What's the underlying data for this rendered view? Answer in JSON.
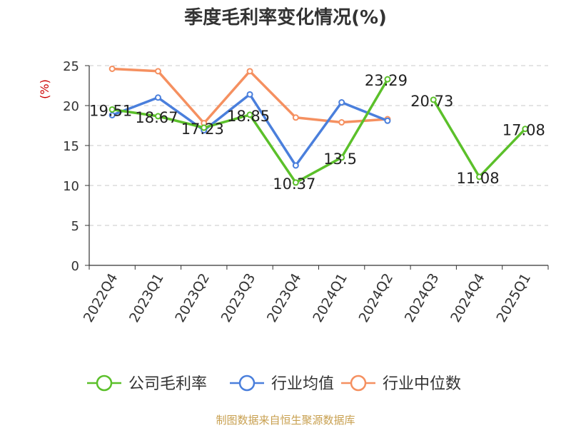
{
  "chart_data": {
    "type": "line",
    "title": "季度毛利率变化情况(%)",
    "ylabel": "(%)",
    "xlabel": "",
    "ylim": [
      0,
      25
    ],
    "yticks": [
      0,
      5,
      10,
      15,
      20,
      25
    ],
    "grid": true,
    "legend_position": "bottom",
    "categories": [
      "2022Q4",
      "2023Q1",
      "2023Q2",
      "2023Q3",
      "2023Q4",
      "2024Q1",
      "2024Q2",
      "2024Q3",
      "2024Q4",
      "2025Q1"
    ],
    "series": [
      {
        "name": "公司毛利率",
        "color": "#5bc02a",
        "values": [
          19.51,
          18.67,
          17.23,
          18.85,
          10.37,
          13.5,
          23.29,
          20.73,
          11.08,
          17.08
        ],
        "labels": [
          "19.51",
          "18.67",
          "17.23",
          "18.85",
          "10.37",
          "13.5",
          "23.29",
          "20.73",
          "11.08",
          "17.08"
        ],
        "segments": [
          [
            0,
            6
          ],
          [
            7,
            9
          ]
        ]
      },
      {
        "name": "行业均值",
        "color": "#4a7fdc",
        "values": [
          18.8,
          21.0,
          16.9,
          21.4,
          12.5,
          20.4,
          18.1,
          null,
          null,
          null
        ],
        "segments": [
          [
            0,
            6
          ]
        ]
      },
      {
        "name": "行业中位数",
        "color": "#f59060",
        "values": [
          24.6,
          24.3,
          17.8,
          24.3,
          18.5,
          17.9,
          18.3,
          null,
          null,
          null
        ],
        "segments": [
          [
            0,
            6
          ]
        ]
      }
    ]
  },
  "source": "制图数据来自恒生聚源数据库"
}
